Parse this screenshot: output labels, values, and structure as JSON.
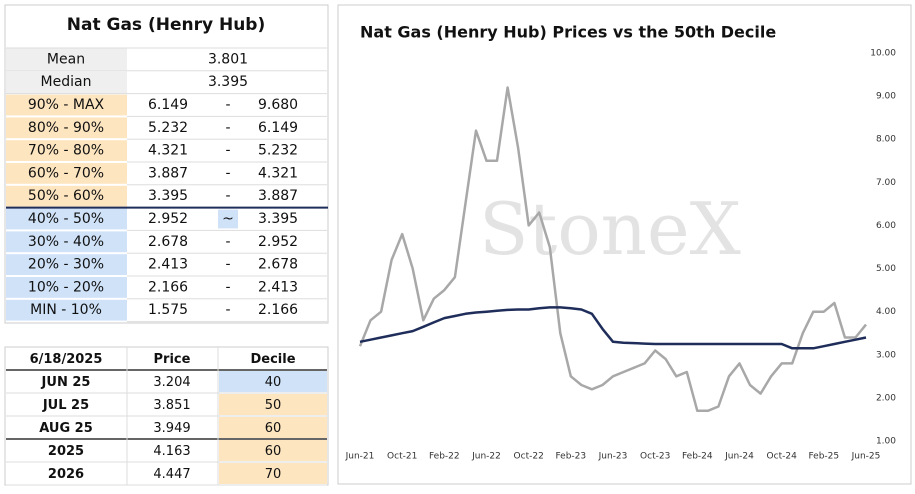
{
  "summary": {
    "title": "Nat Gas (Henry Hub)",
    "rows": [
      {
        "label": "Mean",
        "value": "3.801"
      },
      {
        "label": "Median",
        "value": "3.395"
      }
    ],
    "bands": [
      {
        "label": "90% - MAX",
        "low": "6.149",
        "sep": "-",
        "high": "9.680"
      },
      {
        "label": "80% - 90%",
        "low": "5.232",
        "sep": "-",
        "high": "6.149"
      },
      {
        "label": "70% - 80%",
        "low": "4.321",
        "sep": "-",
        "high": "5.232"
      },
      {
        "label": "60% - 70%",
        "low": "3.887",
        "sep": "-",
        "high": "4.321"
      },
      {
        "label": "50% - 60%",
        "low": "3.395",
        "sep": "-",
        "high": "3.887"
      },
      {
        "label": "40% - 50%",
        "low": "2.952",
        "sep": "~",
        "high": "3.395"
      },
      {
        "label": "30% - 40%",
        "low": "2.678",
        "sep": "-",
        "high": "2.952"
      },
      {
        "label": "20% - 30%",
        "low": "2.413",
        "sep": "-",
        "high": "2.678"
      },
      {
        "label": "10% - 20%",
        "low": "2.166",
        "sep": "-",
        "high": "2.413"
      },
      {
        "label": "MIN - 10%",
        "low": "1.575",
        "sep": "-",
        "high": "2.166"
      }
    ]
  },
  "deciles": {
    "headers": [
      "6/18/2025",
      "Price",
      "Decile"
    ],
    "rows": [
      [
        "JUN 25",
        "3.204",
        "40"
      ],
      [
        "JUL 25",
        "3.851",
        "50"
      ],
      [
        "AUG 25",
        "3.949",
        "60"
      ],
      [
        "2025",
        "4.163",
        "60"
      ],
      [
        "2026",
        "4.447",
        "70"
      ]
    ]
  },
  "chart_data": {
    "type": "line",
    "title": "Nat Gas (Henry Hub) Prices vs the 50th Decile",
    "watermark": "StoneX",
    "categories": [
      "Jun-21",
      null,
      null,
      null,
      "Oct-21",
      null,
      null,
      null,
      "Feb-22",
      null,
      null,
      null,
      "Jun-22",
      null,
      null,
      null,
      "Oct-22",
      null,
      null,
      null,
      "Feb-23",
      null,
      null,
      null,
      "Jun-23",
      null,
      null,
      null,
      "Oct-23",
      null,
      null,
      null,
      "Feb-24",
      null,
      null,
      null,
      "Jun-24",
      null,
      null,
      null,
      "Oct-24",
      null,
      null,
      null,
      "Feb-25",
      null,
      null,
      null,
      "Jun-25"
    ],
    "series": [
      {
        "name": "Price",
        "color": "#a8a8a8",
        "values": [
          3.2,
          3.8,
          4.0,
          5.2,
          5.8,
          5.0,
          3.8,
          4.3,
          4.5,
          4.8,
          6.5,
          8.2,
          7.5,
          7.5,
          9.2,
          7.8,
          6.0,
          6.3,
          5.5,
          3.5,
          2.5,
          2.3,
          2.2,
          2.3,
          2.5,
          2.6,
          2.7,
          2.8,
          3.1,
          2.9,
          2.5,
          2.6,
          1.7,
          1.7,
          1.8,
          2.5,
          2.8,
          2.3,
          2.1,
          2.5,
          2.8,
          2.8,
          3.5,
          4.0,
          4.0,
          4.2,
          3.4,
          3.4,
          3.7
        ]
      },
      {
        "name": "50th Decile",
        "color": "#1f2d5a",
        "values": [
          3.3,
          3.35,
          3.4,
          3.45,
          3.5,
          3.55,
          3.65,
          3.75,
          3.85,
          3.9,
          3.95,
          3.98,
          4.0,
          4.02,
          4.04,
          4.05,
          4.05,
          4.08,
          4.1,
          4.1,
          4.08,
          4.05,
          3.95,
          3.6,
          3.3,
          3.28,
          3.27,
          3.26,
          3.25,
          3.25,
          3.25,
          3.25,
          3.25,
          3.25,
          3.25,
          3.25,
          3.25,
          3.25,
          3.25,
          3.25,
          3.25,
          3.15,
          3.15,
          3.15,
          3.2,
          3.25,
          3.3,
          3.35,
          3.4
        ]
      }
    ],
    "ylim": [
      1,
      10
    ],
    "yticks": [
      {
        "value": 1,
        "label": "1.00"
      },
      {
        "value": 2,
        "label": "2.00"
      },
      {
        "value": 3,
        "label": "3.00"
      },
      {
        "value": 4,
        "label": "4.00"
      },
      {
        "value": 5,
        "label": "5.00"
      },
      {
        "value": 6,
        "label": "6.00"
      },
      {
        "value": 7,
        "label": "7.00"
      },
      {
        "value": 8,
        "label": "8.00"
      },
      {
        "value": 9,
        "label": "9.00"
      },
      {
        "value": 10,
        "label": "10.00"
      }
    ]
  }
}
